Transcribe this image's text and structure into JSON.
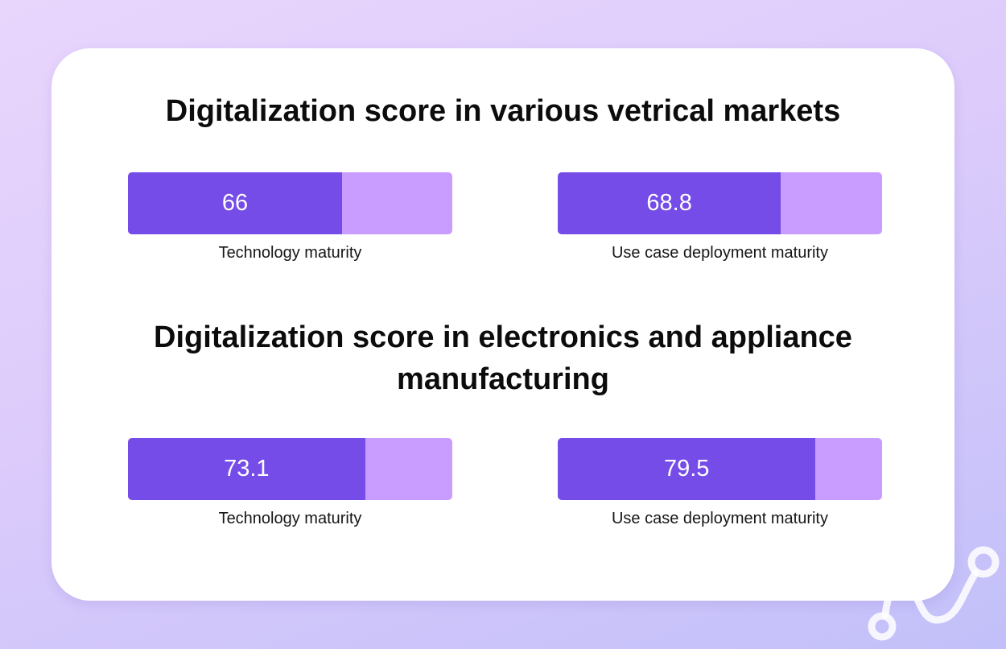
{
  "colors": {
    "fill": "#754ce8",
    "track": "#c99cff",
    "card": "#ffffff"
  },
  "chart_data": [
    {
      "type": "bar",
      "title": "Digitalization score in various vetrical markets",
      "categories": [
        "Technology maturity",
        "Use case deployment maturity"
      ],
      "values": [
        66,
        68.8
      ],
      "value_labels": [
        "66",
        "68.8"
      ],
      "ylim": [
        0,
        100
      ]
    },
    {
      "type": "bar",
      "title": "Digitalization score in electronics and appliance manufacturing",
      "categories": [
        "Technology maturity",
        "Use case deployment maturity"
      ],
      "values": [
        73.1,
        79.5
      ],
      "value_labels": [
        "73.1",
        "79.5"
      ],
      "ylim": [
        0,
        100
      ]
    }
  ],
  "decoration": {
    "icon": "brand-logo-icon"
  }
}
